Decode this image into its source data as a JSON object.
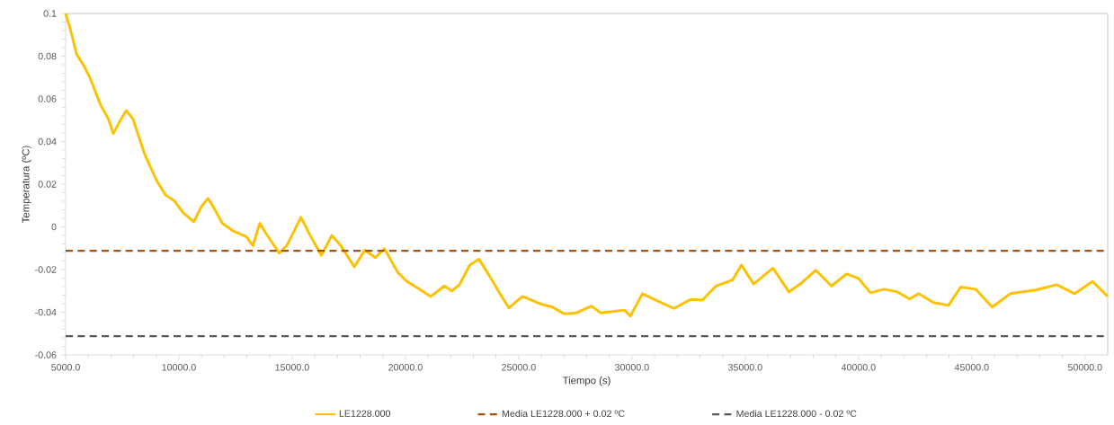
{
  "chart_data": {
    "type": "line",
    "xlabel": "Tiempo (s)",
    "ylabel": "Temperatura (ºC)",
    "x": [
      5000,
      5223,
      5489,
      5819,
      6085,
      6550,
      6880,
      7107,
      7345,
      7675,
      7966,
      8470,
      9000,
      9398,
      9796,
      10193,
      10658,
      10986,
      11280,
      11518,
      11916,
      12377,
      12973,
      13267,
      13569,
      13902,
      14431,
      14761,
      15386,
      15756,
      16286,
      16750,
      17147,
      17743,
      18208,
      18673,
      19070,
      19666,
      20064,
      20394,
      21121,
      21718,
      22049,
      22380,
      22844,
      23242,
      23705,
      24170,
      24568,
      25164,
      25958,
      26488,
      27018,
      27547,
      28211,
      28608,
      29138,
      29668,
      29932,
      30461,
      31125,
      31853,
      32583,
      33112,
      33708,
      34436,
      34834,
      35366,
      36225,
      36927,
      37484,
      38119,
      38807,
      39472,
      40002,
      40532,
      41128,
      41725,
      42253,
      42651,
      43314,
      43974,
      44507,
      45169,
      45900,
      46695,
      47822,
      48749,
      49544,
      50333,
      51000
    ],
    "series": [
      {
        "name": "LE1228.000",
        "color": "#ffc000",
        "values": [
          0.1,
          0.092,
          0.0808,
          0.0752,
          0.0696,
          0.057,
          0.0507,
          0.0437,
          0.0486,
          0.0545,
          0.0507,
          0.0346,
          0.022,
          0.015,
          0.0122,
          0.0066,
          0.0024,
          0.0094,
          0.0133,
          0.0094,
          0.0017,
          -0.0018,
          -0.0046,
          -0.0088,
          0.0017,
          -0.004,
          -0.0123,
          -0.0088,
          0.0045,
          -0.0032,
          -0.0134,
          -0.004,
          -0.0088,
          -0.0187,
          -0.0109,
          -0.0144,
          -0.0102,
          -0.0214,
          -0.0256,
          -0.0277,
          -0.0326,
          -0.0277,
          -0.0301,
          -0.0271,
          -0.0179,
          -0.0151,
          -0.0229,
          -0.0313,
          -0.038,
          -0.0326,
          -0.0361,
          -0.0376,
          -0.0408,
          -0.0403,
          -0.0371,
          -0.0403,
          -0.0397,
          -0.039,
          -0.0418,
          -0.0313,
          -0.0347,
          -0.0382,
          -0.034,
          -0.0343,
          -0.0277,
          -0.0249,
          -0.0179,
          -0.0268,
          -0.0193,
          -0.0305,
          -0.0263,
          -0.0203,
          -0.0277,
          -0.0221,
          -0.0242,
          -0.0309,
          -0.0292,
          -0.0305,
          -0.0338,
          -0.0313,
          -0.0355,
          -0.0368,
          -0.0282,
          -0.0292,
          -0.0376,
          -0.0313,
          -0.0296,
          -0.0271,
          -0.0313,
          -0.0256,
          -0.0326
        ]
      }
    ],
    "ref_lines": [
      {
        "axis": "y",
        "value": -0.0112,
        "label": "Media LE1228.000 + 0.02 ºC",
        "color": "#a5520e",
        "line_style": "dashed"
      },
      {
        "axis": "y",
        "value": -0.0512,
        "label": "Media LE1228.000 - 0.02 ºC",
        "color": "#595959",
        "line_style": "dashed"
      }
    ],
    "xlim": [
      5000,
      51000
    ],
    "ylim": [
      -0.06,
      0.1
    ],
    "xticks": [
      {
        "value": 5000,
        "label": "5000.0"
      },
      {
        "value": 10000,
        "label": "10000.0"
      },
      {
        "value": 15000,
        "label": "15000.0"
      },
      {
        "value": 20000,
        "label": "20000.0"
      },
      {
        "value": 25000,
        "label": "25000.0"
      },
      {
        "value": 30000,
        "label": "30000.0"
      },
      {
        "value": 35000,
        "label": "35000.0"
      },
      {
        "value": 40000,
        "label": "40000.0"
      },
      {
        "value": 45000,
        "label": "45000.0"
      },
      {
        "value": 50000,
        "label": "50000.0"
      }
    ],
    "yticks": [
      -0.06,
      -0.04,
      -0.02,
      0,
      0.02,
      0.04,
      0.06,
      0.08,
      0.1
    ],
    "legend": "bottom",
    "marker": "none",
    "grid": false
  }
}
